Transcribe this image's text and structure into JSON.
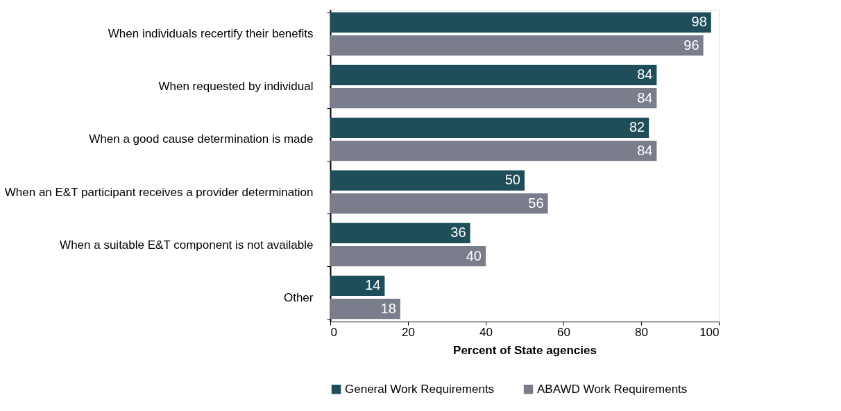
{
  "chart_data": {
    "type": "bar",
    "orientation": "horizontal",
    "categories": [
      "When individuals recertify their benefits",
      "When requested by individual",
      "When a good cause determination is made",
      "When an E&T participant receives a provider determination",
      "When a suitable E&T component is not available",
      "Other"
    ],
    "series": [
      {
        "name": "General Work Requirements",
        "color": "#1f4e5a",
        "values": [
          98,
          84,
          82,
          50,
          36,
          14
        ]
      },
      {
        "name": "ABAWD Work Requirements",
        "color": "#7a7d8b",
        "values": [
          96,
          84,
          84,
          56,
          40,
          18
        ]
      }
    ],
    "xlabel": "Percent of State agencies",
    "xlim": [
      0,
      100
    ],
    "xticks": [
      0,
      20,
      40,
      60,
      80,
      100
    ],
    "data_labels": true,
    "legend": "bottom",
    "grid": false
  }
}
